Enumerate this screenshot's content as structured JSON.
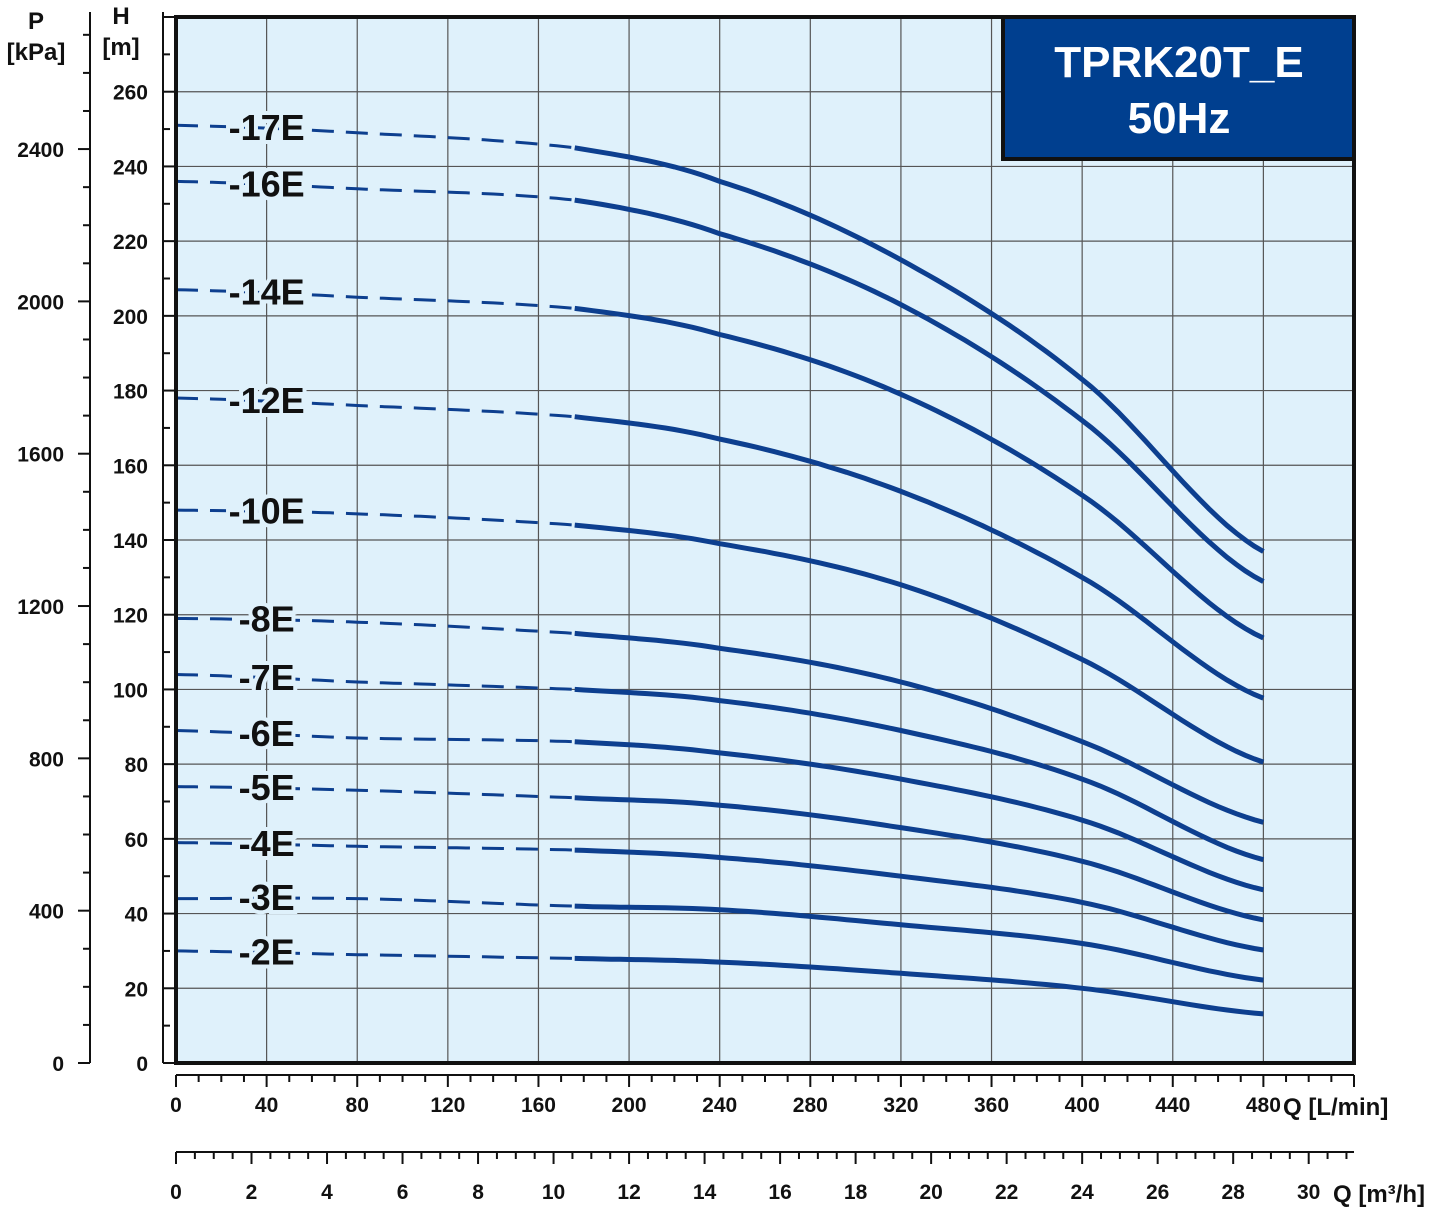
{
  "chart_data": {
    "type": "line",
    "title": "TPRK20T_E",
    "subtitle": "50Hz",
    "y_left": {
      "label_line1": "P",
      "label_line2": "[kPa]",
      "ticks": [
        "0",
        "400",
        "800",
        "1200",
        "1600",
        "2000",
        "2400"
      ]
    },
    "y_right": {
      "label_line1": "H",
      "label_line2": "[m]",
      "ticks": [
        "0",
        "20",
        "40",
        "60",
        "80",
        "100",
        "120",
        "140",
        "160",
        "180",
        "200",
        "220",
        "240",
        "260"
      ]
    },
    "x_primary": {
      "label": "Q [L/min]",
      "ticks": [
        "0",
        "40",
        "80",
        "120",
        "160",
        "200",
        "240",
        "280",
        "320",
        "360",
        "400",
        "440",
        "480"
      ]
    },
    "x_secondary": {
      "label": "Q [m³/h]",
      "ticks": [
        "0",
        "2",
        "4",
        "6",
        "8",
        "10",
        "12",
        "14",
        "16",
        "18",
        "20",
        "22",
        "24",
        "26",
        "28",
        "30"
      ]
    },
    "x_range": [
      0,
      520
    ],
    "y_range": [
      0,
      280
    ],
    "dashed_until": 176,
    "grid": true,
    "colors": {
      "line": "#0d3f8f",
      "plot_bg": "#dff1fb",
      "grid": "#555555",
      "title_bg": "#003f8f",
      "title_text": "#ffffff"
    },
    "series": [
      {
        "name": "-17E",
        "x": [
          0,
          80,
          176,
          240,
          320,
          400,
          483
        ],
        "y": [
          251,
          249,
          245,
          236,
          215,
          183,
          136
        ]
      },
      {
        "name": "-16E",
        "x": [
          0,
          80,
          176,
          240,
          320,
          400,
          483
        ],
        "y": [
          236,
          234,
          231,
          222,
          203,
          172,
          128
        ]
      },
      {
        "name": "-14E",
        "x": [
          0,
          80,
          176,
          240,
          320,
          400,
          483
        ],
        "y": [
          207,
          205,
          202,
          195,
          179,
          152,
          113
        ]
      },
      {
        "name": "-12E",
        "x": [
          0,
          80,
          176,
          240,
          320,
          400,
          483
        ],
        "y": [
          178,
          176,
          173,
          167,
          153,
          130,
          97
        ]
      },
      {
        "name": "-10E",
        "x": [
          0,
          80,
          176,
          240,
          320,
          400,
          483
        ],
        "y": [
          148,
          147,
          144,
          139,
          128,
          108,
          80
        ]
      },
      {
        "name": "-8E",
        "x": [
          0,
          80,
          176,
          240,
          320,
          400,
          483
        ],
        "y": [
          119,
          118,
          115,
          111,
          102,
          86,
          64
        ]
      },
      {
        "name": "-7E",
        "x": [
          0,
          80,
          176,
          240,
          320,
          400,
          483
        ],
        "y": [
          104,
          102,
          100,
          97,
          89,
          76,
          54
        ]
      },
      {
        "name": "-6E",
        "x": [
          0,
          80,
          176,
          240,
          320,
          400,
          483
        ],
        "y": [
          89,
          87,
          86,
          83,
          76,
          65,
          46
        ]
      },
      {
        "name": "-5E",
        "x": [
          0,
          80,
          176,
          240,
          320,
          400,
          483
        ],
        "y": [
          74,
          73,
          71,
          69,
          63,
          54,
          38
        ]
      },
      {
        "name": "-4E",
        "x": [
          0,
          80,
          176,
          240,
          320,
          400,
          483
        ],
        "y": [
          59,
          58,
          57,
          55,
          50,
          43,
          30
        ]
      },
      {
        "name": "-3E",
        "x": [
          0,
          80,
          176,
          240,
          320,
          400,
          483
        ],
        "y": [
          44,
          44,
          42,
          41,
          37,
          32,
          22
        ]
      },
      {
        "name": "-2E",
        "x": [
          0,
          80,
          176,
          240,
          320,
          400,
          483
        ],
        "y": [
          30,
          29,
          28,
          27,
          24,
          20,
          13
        ]
      }
    ]
  }
}
